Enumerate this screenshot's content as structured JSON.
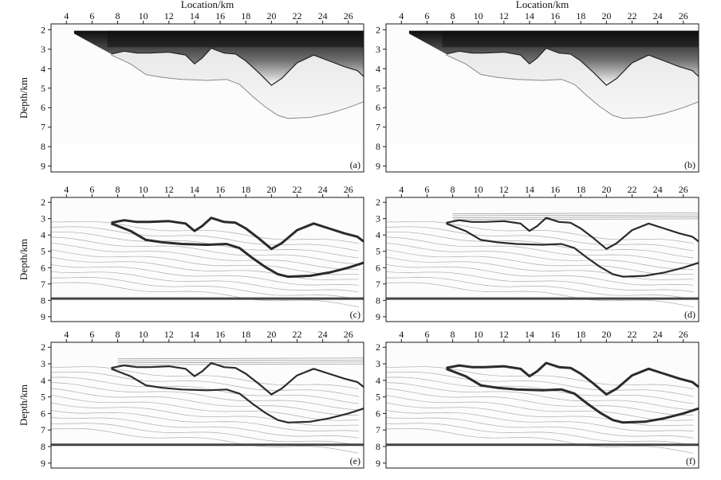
{
  "figure": {
    "x_axis_title": "Location/km",
    "y_axis_title": "Depth/km",
    "x_ticks": [
      "4",
      "6",
      "8",
      "10",
      "12",
      "14",
      "16",
      "18",
      "20",
      "22",
      "24",
      "26"
    ],
    "y_ticks": [
      "2",
      "3",
      "4",
      "5",
      "6",
      "7",
      "8",
      "9"
    ],
    "panels": [
      {
        "label": "(a)",
        "kind": "smeared"
      },
      {
        "label": "(b)",
        "kind": "smeared"
      },
      {
        "label": "(c)",
        "kind": "sharp"
      },
      {
        "label": "(d)",
        "kind": "medium"
      },
      {
        "label": "(e)",
        "kind": "medium"
      },
      {
        "label": "(f)",
        "kind": "sharp"
      }
    ],
    "colors": {
      "ink": "#1a1a1a",
      "reflector": "#2b2b2b",
      "layer": "#9a9a9a",
      "background": "#ffffff"
    }
  }
}
